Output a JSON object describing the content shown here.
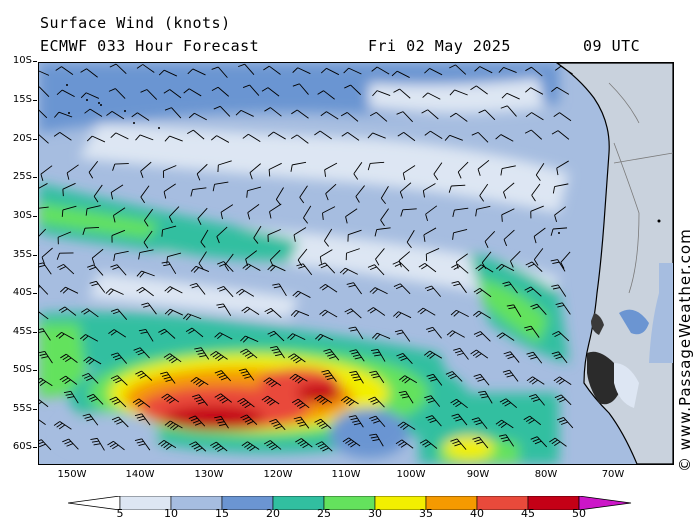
{
  "header": {
    "title": "Surface Wind (knots)",
    "model": "ECMWF 033 Hour Forecast",
    "date": "Fri 02 May 2025",
    "time": "09 UTC"
  },
  "credit": "© www.PassageWeather.com",
  "axes": {
    "lat_labels": [
      "10S",
      "15S",
      "20S",
      "25S",
      "30S",
      "35S",
      "40S",
      "45S",
      "50S",
      "55S",
      "60S"
    ],
    "lon_labels": [
      "150W",
      "140W",
      "130W",
      "120W",
      "110W",
      "100W",
      "90W",
      "80W",
      "70W"
    ]
  },
  "legend": {
    "stops": [
      "5",
      "10",
      "15",
      "20",
      "25",
      "30",
      "35",
      "40",
      "45",
      "50"
    ],
    "colors": [
      "#ffffff",
      "#dde6f3",
      "#a6bde0",
      "#6b95d2",
      "#31bfa0",
      "#64e25d",
      "#f2ef00",
      "#f59a00",
      "#e94a3b",
      "#c40016",
      "#cc16c8"
    ]
  },
  "colors": {
    "land": "#c9d2dd",
    "coast": "#000000",
    "barb": "#000000"
  }
}
